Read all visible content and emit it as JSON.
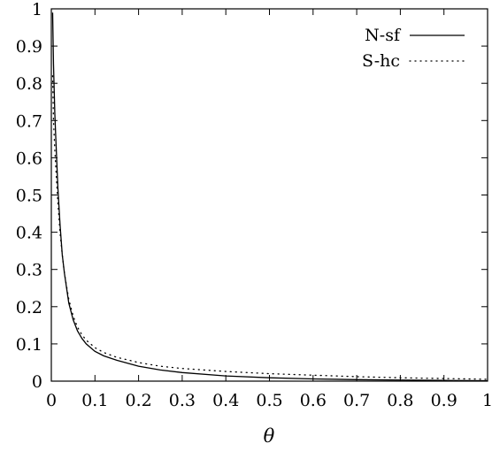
{
  "chart_data": {
    "type": "line",
    "title": "",
    "xlabel": "θ",
    "ylabel": "",
    "xlim": [
      0,
      1
    ],
    "ylim": [
      0,
      1
    ],
    "grid": false,
    "legend_position": "top-right",
    "x_ticks": [
      0,
      0.1,
      0.2,
      0.3,
      0.4,
      0.5,
      0.6,
      0.7,
      0.8,
      0.9,
      1
    ],
    "x_tick_labels": [
      "0",
      "0.1",
      "0.2",
      "0.3",
      "0.4",
      "0.5",
      "0.6",
      "0.7",
      "0.8",
      "0.9",
      "1"
    ],
    "y_ticks": [
      0,
      0.1,
      0.2,
      0.3,
      0.4,
      0.5,
      0.6,
      0.7,
      0.8,
      0.9,
      1
    ],
    "y_tick_labels": [
      "0",
      "0.1",
      "0.2",
      "0.3",
      "0.4",
      "0.5",
      "0.6",
      "0.7",
      "0.8",
      "0.9",
      "1"
    ],
    "series": [
      {
        "name": "N-sf",
        "style": "solid",
        "color": "#000000",
        "x": [
          0.003,
          0.005,
          0.008,
          0.01,
          0.015,
          0.02,
          0.025,
          0.03,
          0.04,
          0.05,
          0.06,
          0.07,
          0.08,
          0.1,
          0.12,
          0.15,
          0.2,
          0.25,
          0.3,
          0.4,
          0.5,
          0.6,
          0.7,
          0.8,
          0.9,
          1.0
        ],
        "y": [
          0.99,
          0.85,
          0.72,
          0.66,
          0.52,
          0.42,
          0.34,
          0.29,
          0.21,
          0.165,
          0.135,
          0.115,
          0.1,
          0.08,
          0.068,
          0.056,
          0.04,
          0.03,
          0.023,
          0.014,
          0.009,
          0.006,
          0.004,
          0.003,
          0.002,
          0.001
        ]
      },
      {
        "name": "S-hc",
        "style": "dotted",
        "color": "#000000",
        "x": [
          0.003,
          0.005,
          0.008,
          0.01,
          0.015,
          0.02,
          0.025,
          0.03,
          0.04,
          0.05,
          0.06,
          0.07,
          0.08,
          0.1,
          0.12,
          0.15,
          0.2,
          0.25,
          0.3,
          0.4,
          0.5,
          0.6,
          0.7,
          0.8,
          0.9,
          1.0
        ],
        "y": [
          0.82,
          0.7,
          0.62,
          0.58,
          0.48,
          0.4,
          0.34,
          0.29,
          0.22,
          0.175,
          0.145,
          0.125,
          0.11,
          0.09,
          0.077,
          0.064,
          0.05,
          0.04,
          0.034,
          0.026,
          0.02,
          0.016,
          0.012,
          0.009,
          0.007,
          0.005
        ]
      }
    ]
  }
}
